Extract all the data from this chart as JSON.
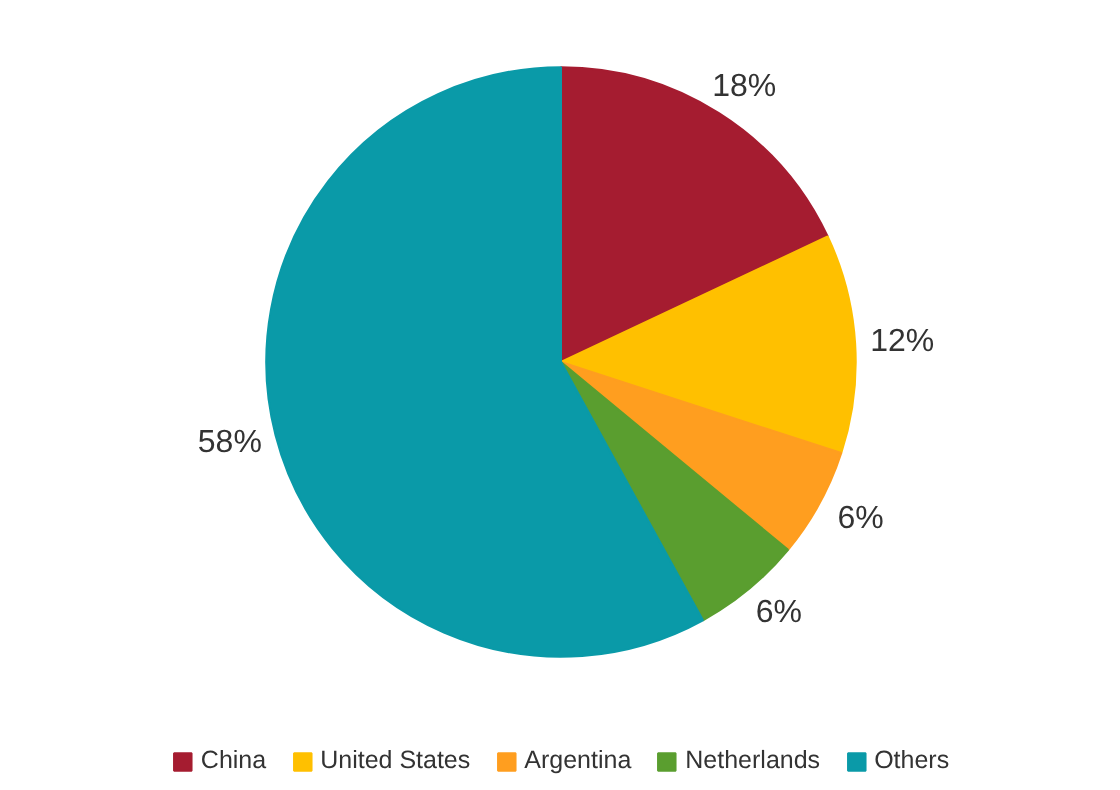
{
  "chart_data": {
    "type": "pie",
    "categories": [
      "China",
      "United States",
      "Argentina",
      "Netherlands",
      "Others"
    ],
    "values": [
      18,
      12,
      6,
      6,
      58
    ],
    "colors": [
      "#a51c30",
      "#ffc000",
      "#ff9e1f",
      "#5a9e2f",
      "#0a9aa8"
    ],
    "value_labels": [
      "18%",
      "12%",
      "6%",
      "6%",
      "58%"
    ],
    "legend": "bottom"
  }
}
